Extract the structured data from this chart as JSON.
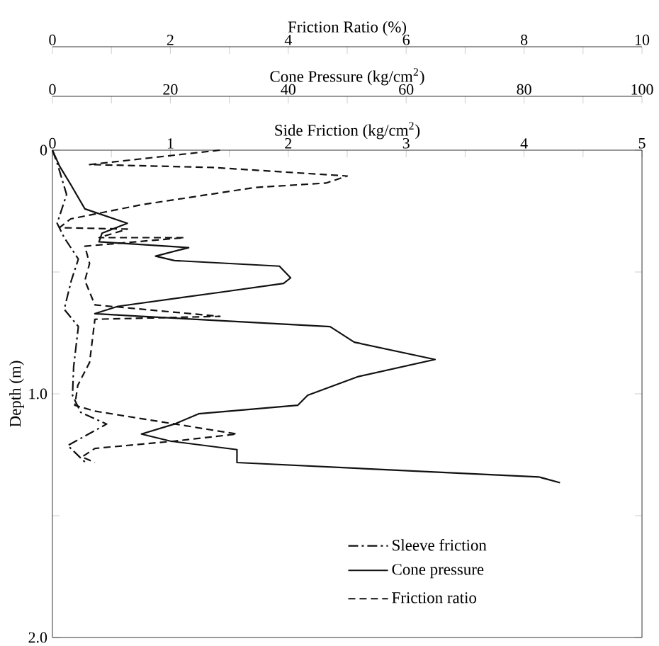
{
  "chart_data": [
    {
      "type": "line",
      "xlabel": "Side Friction (kg/cm$^{2}$)",
      "x2label": "Cone Pressure (kg/cm$^{2}$)",
      "ylabel": "Depth (m)",
      "xlim": [
        0,
        5
      ],
      "xticks": [
        0,
        {
          "value": 0.5,
          "label": null
        },
        1,
        {
          "value": 1.5,
          "label": null
        },
        2,
        {
          "value": 2.5,
          "label": null
        },
        3,
        {
          "value": 3.5,
          "label": null
        },
        4,
        {
          "value": 4.5,
          "label": null
        },
        5
      ],
      "x2lim": [
        0,
        100
      ],
      "x2ticks": [
        0,
        {
          "value": 10,
          "label": null
        },
        20,
        {
          "value": 30,
          "label": null
        },
        40,
        {
          "value": 50,
          "label": null
        },
        60,
        {
          "value": 70,
          "label": null
        },
        80,
        {
          "value": 90,
          "label": null
        },
        100
      ],
      "ylim": [
        2,
        0
      ],
      "yticks": [
        0,
        {
          "value": 0.5,
          "label": null
        },
        {
          "value": 1,
          "label": "1.0"
        },
        {
          "value": 1.5,
          "label": null
        },
        {
          "value": 2,
          "label": "2.0"
        }
      ],
      "legend": "bottom right",
      "series": [
        {
          "name": "Sleeve friction",
          "color": "#111111",
          "line_style": "dashdot",
          "x": [
            0,
            0.04,
            0.12,
            0.04,
            0.1,
            0.22,
            0.16,
            0.1,
            0.22,
            0.18,
            0.17,
            0.24,
            0.46,
            0.13,
            0.28
          ],
          "values": [
            0,
            0.053,
            0.182,
            0.3,
            0.359,
            0.447,
            0.535,
            0.653,
            0.724,
            0.888,
            1.006,
            1.076,
            1.124,
            1.212,
            1.282
          ]
        },
        {
          "name": "Cone pressure",
          "color": "#111111",
          "line_style": "solid",
          "axis": "x2",
          "x": [
            0,
            1.2,
            3.1,
            5.5,
            12.7,
            8.4,
            7.9,
            23.1,
            17.5,
            20.7,
            38.5,
            40.4,
            39.2,
            28.8,
            11.1,
            7.2,
            15.1,
            47.1,
            51.2,
            64.9,
            51.9,
            43.3,
            41.6,
            24.8,
            20.7,
            15.1,
            20,
            31.3,
            31.3,
            82.5,
            86.1
          ],
          "values": [
            0,
            0.065,
            0.141,
            0.241,
            0.3,
            0.341,
            0.376,
            0.4,
            0.435,
            0.453,
            0.476,
            0.524,
            0.547,
            0.582,
            0.641,
            0.671,
            0.682,
            0.724,
            0.788,
            0.859,
            0.929,
            1.006,
            1.047,
            1.082,
            1.124,
            1.165,
            1.194,
            1.229,
            1.282,
            1.341,
            1.365
          ]
        }
      ]
    },
    {
      "type": "line",
      "xlabel": "Friction Ratio (%)",
      "xlim": [
        0,
        10
      ],
      "xticks": [
        0,
        {
          "value": 1,
          "label": null
        },
        2,
        {
          "value": 3,
          "label": null
        },
        4,
        {
          "value": 5,
          "label": null
        },
        6,
        {
          "value": 7,
          "label": null
        },
        8,
        {
          "value": 9,
          "label": null
        },
        10
      ],
      "ylim": [
        2,
        0
      ],
      "tick_labels": "x",
      "legend": "bottom right",
      "series": [
        {
          "name": "Friction ratio",
          "color": "#111111",
          "line_style": "dashed",
          "x": [
            2.84,
            0.63,
            2.72,
            5,
            4.64,
            3.44,
            1.51,
            0.31,
            0.12,
            1.27,
            0.79,
            2.24,
            0.55,
            0.63,
            0.55,
            0.72,
            2.84,
            0.72,
            0.63,
            0.43,
            0.38,
            0.72,
            3.13,
            2.07,
            0.72,
            0.5,
            0.72
          ],
          "values": [
            0,
            0.059,
            0.071,
            0.106,
            0.135,
            0.153,
            0.224,
            0.282,
            0.318,
            0.324,
            0.359,
            0.359,
            0.394,
            0.465,
            0.535,
            0.635,
            0.682,
            0.694,
            0.871,
            0.965,
            1.047,
            1.071,
            1.165,
            1.194,
            1.224,
            1.259,
            1.282
          ]
        }
      ]
    }
  ]
}
